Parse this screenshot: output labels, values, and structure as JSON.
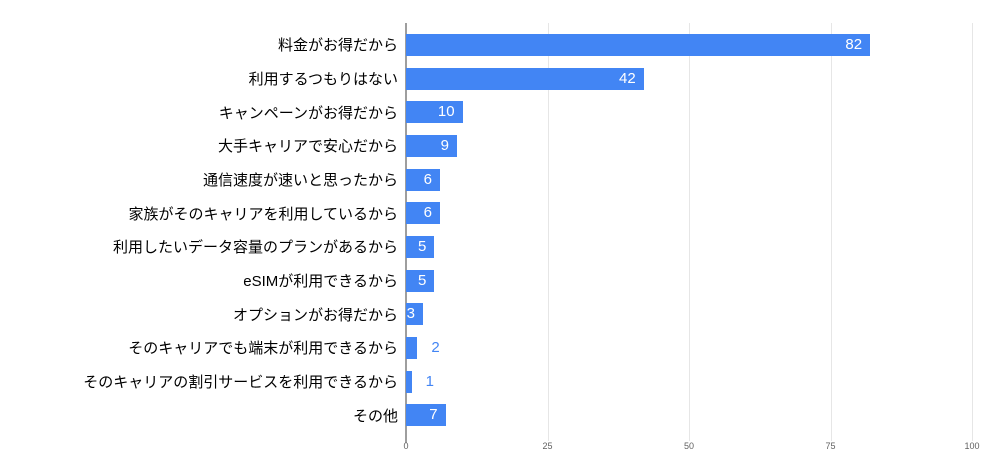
{
  "chart_data": {
    "type": "bar",
    "orientation": "horizontal",
    "title": "",
    "xlabel": "",
    "ylabel": "",
    "categories": [
      "料金がお得だから",
      "利用するつもりはない",
      "キャンペーンがお得だから",
      "大手キャリアで安心だから",
      "通信速度が速いと思ったから",
      "家族がそのキャリアを利用しているから",
      "利用したいデータ容量のプランがあるから",
      "eSIMが利用できるから",
      "オプションがお得だから",
      "そのキャリアでも端末が利用できるから",
      "そのキャリアの割引サービスを利用できるから",
      "その他"
    ],
    "values": [
      82,
      42,
      10,
      9,
      6,
      6,
      5,
      5,
      3,
      2,
      1,
      7
    ],
    "xlim": [
      0,
      100
    ],
    "xticks": [
      0,
      25,
      50,
      75,
      100
    ],
    "grid": true,
    "legend": "none",
    "value_label_inside_threshold": 3,
    "colors": {
      "bar": "#4285f4",
      "value_label_inside": "#ffffff",
      "value_label_outside": "#4285f4",
      "gridline": "#e6e6e6",
      "axis_line": "#9e9e9e",
      "tick_label": "#616161",
      "category_label": "#000000",
      "background": "#ffffff"
    }
  }
}
